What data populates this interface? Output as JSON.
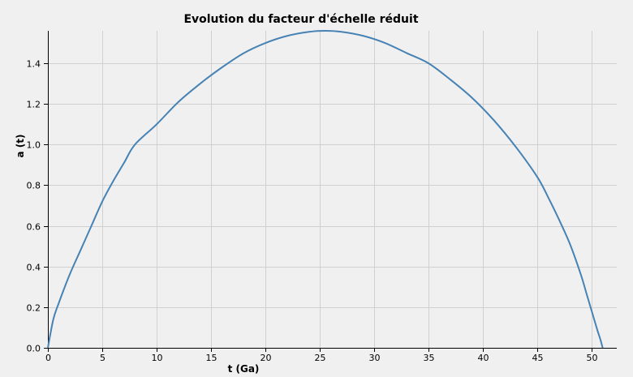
{
  "chart_data": {
    "type": "line",
    "title": "Evolution du facteur d'échelle réduit",
    "xlabel": "t (Ga)",
    "ylabel": "a (t)",
    "xlim": [
      0,
      52.3
    ],
    "ylim": [
      0,
      1.56
    ],
    "xticks": [
      0,
      5,
      10,
      15,
      20,
      25,
      30,
      35,
      40,
      45,
      50
    ],
    "yticks": [
      0.0,
      0.2,
      0.4,
      0.6,
      0.8,
      1.0,
      1.2,
      1.4
    ],
    "ytick_labels": [
      "0.0",
      "0.2",
      "0.4",
      "0.6",
      "0.8",
      "1.0",
      "1.2",
      "1.4"
    ],
    "grid": true,
    "series": [
      {
        "color": "#4682b4",
        "x": [
          0,
          0.5,
          1,
          2,
          3,
          4,
          5,
          6,
          7,
          8,
          10,
          12,
          14,
          16,
          18,
          20,
          22,
          24,
          25.5,
          27,
          29,
          31,
          33,
          35,
          37,
          39,
          41,
          43,
          45,
          46,
          47,
          48,
          49,
          49.5,
          50,
          50.5,
          50.8,
          51.0
        ],
        "y": [
          0.0,
          0.14,
          0.22,
          0.36,
          0.48,
          0.6,
          0.72,
          0.82,
          0.91,
          1.0,
          1.1,
          1.21,
          1.3,
          1.38,
          1.45,
          1.5,
          1.535,
          1.555,
          1.56,
          1.555,
          1.535,
          1.5,
          1.45,
          1.4,
          1.32,
          1.23,
          1.12,
          0.99,
          0.84,
          0.74,
          0.63,
          0.51,
          0.36,
          0.27,
          0.18,
          0.09,
          0.04,
          0.0
        ]
      }
    ]
  }
}
